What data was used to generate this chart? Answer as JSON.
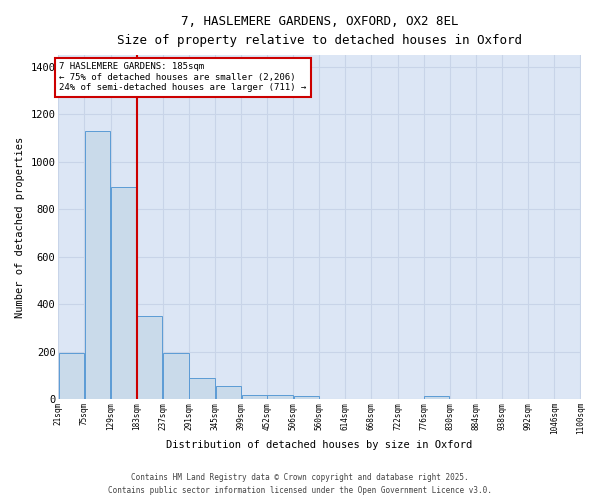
{
  "title1": "7, HASLEMERE GARDENS, OXFORD, OX2 8EL",
  "title2": "Size of property relative to detached houses in Oxford",
  "xlabel": "Distribution of detached houses by size in Oxford",
  "ylabel": "Number of detached properties",
  "bin_edges": [
    21,
    75,
    129,
    183,
    237,
    291,
    345,
    399,
    452,
    506,
    560,
    614,
    668,
    722,
    776,
    830,
    884,
    938,
    992,
    1046,
    1100
  ],
  "bar_heights": [
    195,
    1130,
    895,
    350,
    195,
    88,
    55,
    20,
    20,
    12,
    0,
    0,
    0,
    0,
    12,
    0,
    0,
    0,
    0,
    0
  ],
  "bar_color": "#c9daea",
  "bar_edge_color": "#5b9bd5",
  "grid_color": "#c8d4e8",
  "background_color": "#dce6f5",
  "property_line_x": 183,
  "property_line_color": "#cc0000",
  "annotation_text": "7 HASLEMERE GARDENS: 185sqm\n← 75% of detached houses are smaller (2,206)\n24% of semi-detached houses are larger (711) →",
  "annotation_box_color": "#cc0000",
  "ylim": [
    0,
    1450
  ],
  "xlim": [
    21,
    1100
  ],
  "tick_labels": [
    "21sqm",
    "75sqm",
    "129sqm",
    "183sqm",
    "237sqm",
    "291sqm",
    "345sqm",
    "399sqm",
    "452sqm",
    "506sqm",
    "560sqm",
    "614sqm",
    "668sqm",
    "722sqm",
    "776sqm",
    "830sqm",
    "884sqm",
    "938sqm",
    "992sqm",
    "1046sqm",
    "1100sqm"
  ],
  "footer1": "Contains HM Land Registry data © Crown copyright and database right 2025.",
  "footer2": "Contains public sector information licensed under the Open Government Licence v3.0.",
  "yticks": [
    0,
    200,
    400,
    600,
    800,
    1000,
    1200,
    1400
  ],
  "ytick_labels": [
    "0",
    "200",
    "400",
    "600",
    "800",
    "1000",
    "1200",
    "1400"
  ]
}
